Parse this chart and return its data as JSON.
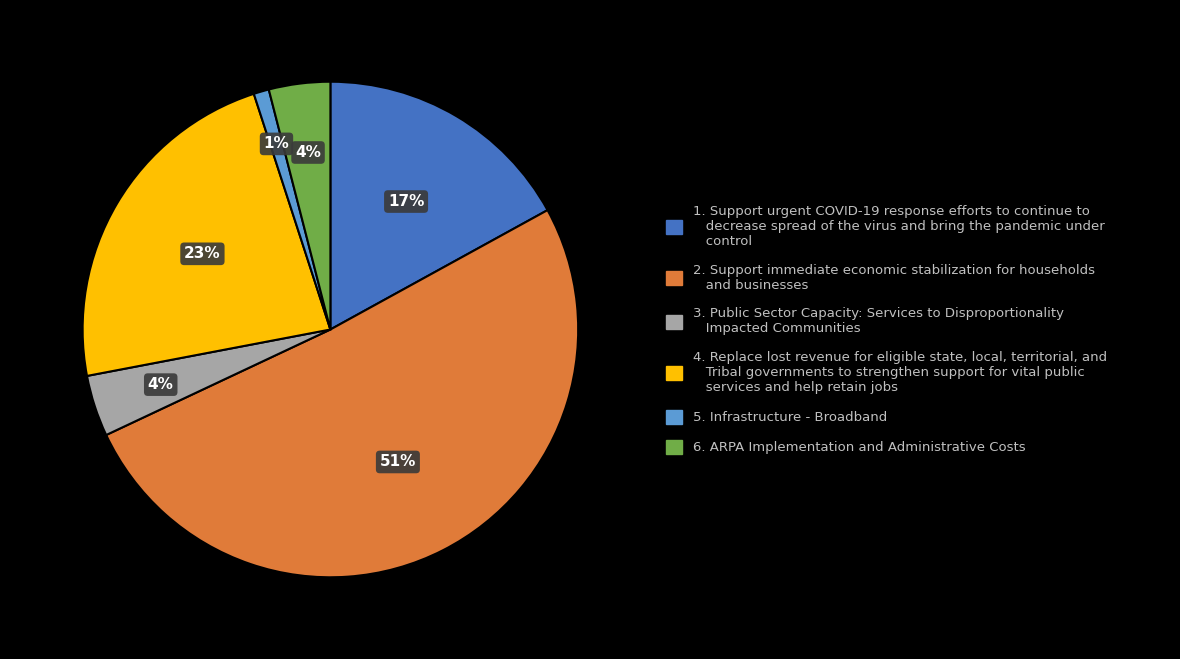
{
  "slices": [
    17,
    51,
    4,
    23,
    1,
    4
  ],
  "colors": [
    "#4472C4",
    "#E07B39",
    "#A6A6A6",
    "#FFC000",
    "#5B9BD5",
    "#70AD47"
  ],
  "pct_labels": [
    "17%",
    "51%",
    "4%",
    "23%",
    "1%",
    "4%"
  ],
  "legend_labels": [
    "1. Support urgent COVID-19 response efforts to continue to\n   decrease spread of the virus and bring the pandemic under\n   control",
    "2. Support immediate economic stabilization for households\n   and businesses",
    "3. Public Sector Capacity: Services to Disproportionality\n   Impacted Communities",
    "4. Replace lost revenue for eligible state, local, territorial, and\n   Tribal governments to strengthen support for vital public\n   services and help retain jobs",
    "5. Infrastructure - Broadband",
    "6. ARPA Implementation and Administrative Costs"
  ],
  "background_color": "#000000",
  "text_color": "#C0C0C0",
  "label_box_color": "#3A3A3A",
  "startangle": 90,
  "label_fontsize": 11,
  "legend_fontsize": 9.5
}
